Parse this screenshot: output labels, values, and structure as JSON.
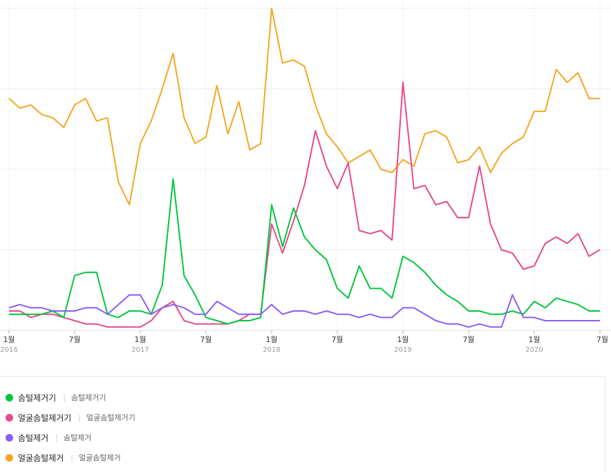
{
  "chart_data": {
    "type": "line",
    "grid": true,
    "legend_position": "bottom",
    "ylim": [
      0,
      100
    ],
    "x_ticks": [
      {
        "index": 0,
        "label": "1월",
        "year": "2016"
      },
      {
        "index": 6,
        "label": "7월",
        "year": ""
      },
      {
        "index": 12,
        "label": "1월",
        "year": "2017"
      },
      {
        "index": 18,
        "label": "7월",
        "year": ""
      },
      {
        "index": 24,
        "label": "1월",
        "year": "2018"
      },
      {
        "index": 30,
        "label": "7월",
        "year": ""
      },
      {
        "index": 36,
        "label": "1월",
        "year": "2019"
      },
      {
        "index": 42,
        "label": "7월",
        "year": ""
      },
      {
        "index": 48,
        "label": "1월",
        "year": "2020"
      },
      {
        "index": 54,
        "label": "7월",
        "year": ""
      }
    ],
    "series": [
      {
        "name": "얼굴솜털제거",
        "color": "#f5a623",
        "values": [
          72,
          69,
          70,
          67,
          66,
          63,
          70,
          72,
          65,
          66,
          46,
          39,
          58,
          65,
          75,
          86,
          66,
          58,
          60,
          76,
          61,
          71,
          56,
          58,
          100,
          83,
          84,
          82,
          70,
          61,
          57,
          52,
          54,
          56,
          50,
          49,
          53,
          51,
          61,
          62,
          60,
          52,
          53,
          57,
          49,
          55,
          58,
          60,
          68,
          68,
          81,
          77,
          80,
          72,
          72
        ]
      },
      {
        "name": "얼굴솜털제거기",
        "color": "#e8488c",
        "values": [
          6,
          6,
          4,
          5,
          5,
          4,
          3,
          2,
          2,
          1,
          1,
          1,
          1,
          3,
          7,
          9,
          3,
          2,
          2,
          2,
          2,
          3,
          5,
          5,
          33,
          24,
          34,
          45,
          62,
          51,
          44,
          52,
          31,
          30,
          31,
          28,
          77,
          44,
          45,
          39,
          40,
          35,
          35,
          51,
          33,
          25,
          24,
          19,
          20,
          27,
          29,
          27,
          30,
          23,
          25
        ]
      },
      {
        "name": "솜털제거기",
        "color": "#00c73c",
        "values": [
          5,
          5,
          5,
          5,
          6,
          4,
          17,
          18,
          18,
          5,
          4,
          6,
          6,
          5,
          14,
          47,
          17,
          11,
          4,
          3,
          2,
          3,
          3,
          4,
          39,
          26,
          38,
          29,
          25,
          22,
          13,
          10,
          20,
          13,
          13,
          10,
          23,
          21,
          18,
          14,
          11,
          9,
          6,
          6,
          5,
          5,
          6,
          5,
          9,
          7,
          10,
          9,
          8,
          6,
          6
        ]
      },
      {
        "name": "솜털제거",
        "color": "#8b5cf6",
        "values": [
          7,
          8,
          7,
          7,
          6,
          6,
          6,
          7,
          7,
          5,
          8,
          11,
          11,
          5,
          7,
          8,
          7,
          5,
          5,
          9,
          7,
          5,
          5,
          5,
          8,
          5,
          6,
          6,
          5,
          6,
          5,
          5,
          4,
          5,
          4,
          4,
          7,
          7,
          5,
          3,
          2,
          2,
          1,
          2,
          1,
          1,
          11,
          4,
          4,
          3,
          3,
          3,
          3,
          3,
          3
        ]
      }
    ]
  },
  "legend": [
    {
      "label": "솜털제거기",
      "sublabel": "솜털제거기",
      "color": "#00c73c"
    },
    {
      "label": "얼굴솜털제거기",
      "sublabel": "얼굴솜털제거기",
      "color": "#e8488c"
    },
    {
      "label": "솜털제거",
      "sublabel": "솜털제거",
      "color": "#8b5cf6"
    },
    {
      "label": "얼굴솜털제거",
      "sublabel": "얼굴솜털제거",
      "color": "#f5a623"
    }
  ],
  "legend_separator": "|"
}
